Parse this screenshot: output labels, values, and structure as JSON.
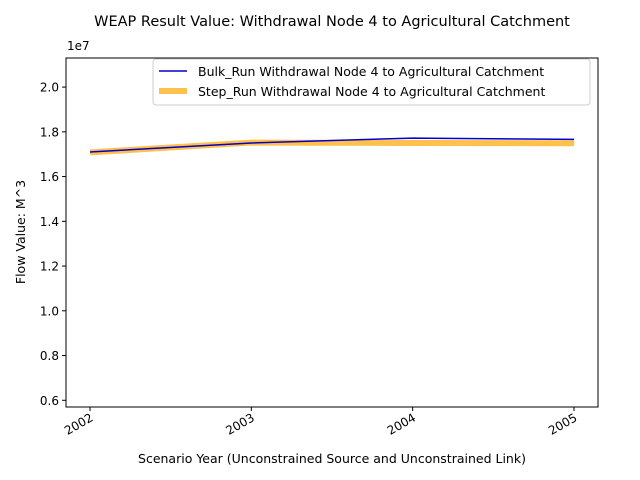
{
  "chart_data": {
    "type": "line",
    "title": "WEAP Result Value: Withdrawal Node 4 to Agricultural Catchment",
    "xlabel": "Scenario Year (Unconstrained Source and Unconstrained Link)",
    "ylabel": "Flow Value: M^3",
    "y_offset_label": "1e7",
    "x": [
      "2002",
      "2003",
      "2004",
      "2005"
    ],
    "xticks": [
      "2002",
      "2003",
      "2004",
      "2005"
    ],
    "yticks": [
      0.6,
      0.8,
      1.0,
      1.2,
      1.4,
      1.6,
      1.8,
      2.0
    ],
    "ytick_labels": [
      "0.6",
      "0.8",
      "1.0",
      "1.2",
      "1.4",
      "1.6",
      "1.8",
      "2.0"
    ],
    "ylim": [
      0.57,
      2.13
    ],
    "y_scale": 10000000,
    "grid": false,
    "legend_position": "upper right",
    "series": [
      {
        "name": "Bulk_Run Withdrawal Node 4 to Agricultural Catchment",
        "values": [
          17100000,
          17500000,
          17720000,
          17660000
        ],
        "color": "#0000cc",
        "style": "thin"
      },
      {
        "name": "Step_Run Withdrawal Node 4 to Agricultural Catchment",
        "values": [
          17080000,
          17520000,
          17500000,
          17490000
        ],
        "color": "#ffa500",
        "style": "thick-translucent"
      }
    ]
  }
}
